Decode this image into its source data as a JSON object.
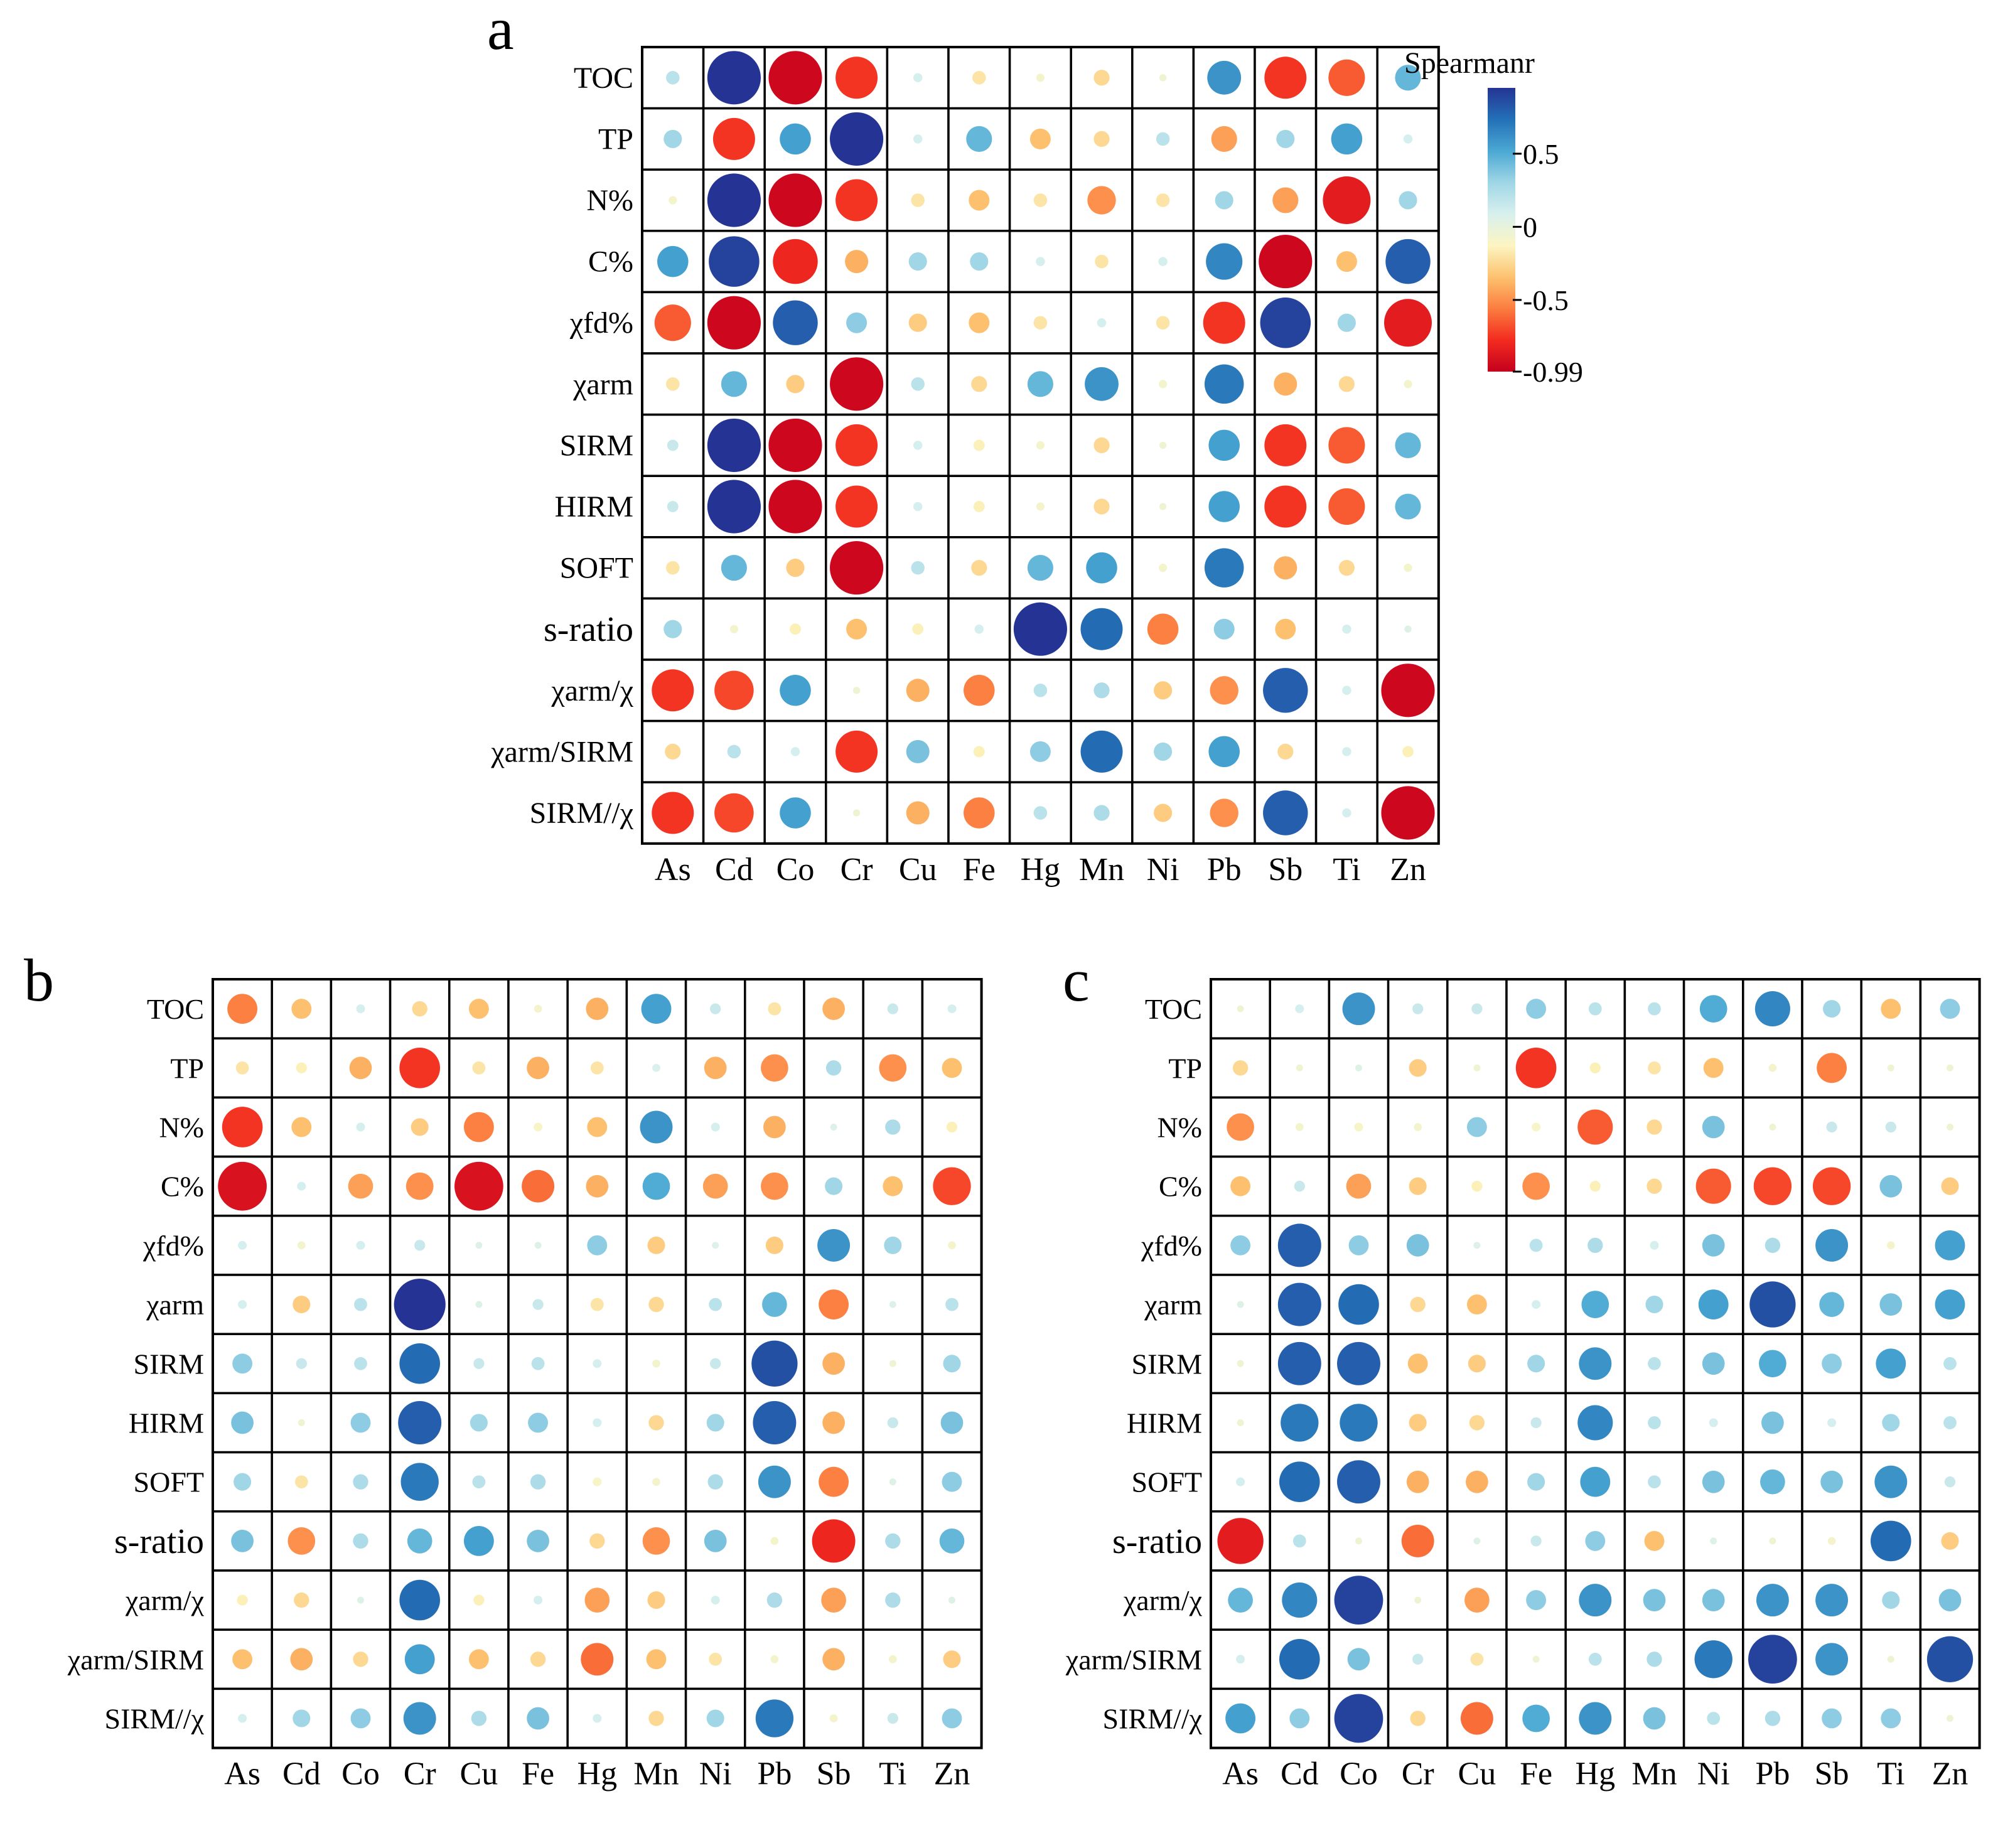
{
  "colorbar": {
    "title": "Spearmanr",
    "ticks": [
      "0.5",
      "0",
      "-0.5",
      "-0.99"
    ],
    "tick_values": [
      0.5,
      0,
      -0.5,
      -0.99
    ],
    "range": [
      -0.99,
      0.95
    ],
    "colors": [
      "#c4001e",
      "#f32b1f",
      "#fb7d3f",
      "#fdc26f",
      "#fcf5c2",
      "#d8f0ee",
      "#9fd6e6",
      "#4aa8d3",
      "#2370b7",
      "#253494"
    ]
  },
  "chart_data": [
    {
      "type": "heatmap",
      "panel_label": "a",
      "rows": [
        "TOC",
        "TP",
        "N%",
        "C%",
        "χfd%",
        "χarm",
        "SIRM",
        "HIRM",
        "SOFT",
        "s-ratio",
        "χarm/χ",
        "χarm/SIRM",
        "SIRM//χ"
      ],
      "columns": [
        "As",
        "Cd",
        "Co",
        "Cr",
        "Cu",
        "Fe",
        "Hg",
        "Mn",
        "Ni",
        "Pb",
        "Sb",
        "Ti",
        "Zn"
      ],
      "values": [
        [
          0.2,
          0.95,
          -0.95,
          -0.75,
          0.1,
          -0.2,
          -0.08,
          -0.25,
          -0.05,
          0.6,
          -0.75,
          -0.65,
          0.45
        ],
        [
          0.3,
          -0.75,
          0.55,
          0.95,
          0.1,
          0.45,
          -0.35,
          -0.25,
          0.2,
          -0.45,
          0.3,
          0.55,
          0.1
        ],
        [
          -0.08,
          0.95,
          -0.95,
          -0.75,
          -0.2,
          -0.35,
          -0.2,
          -0.5,
          -0.2,
          0.3,
          -0.45,
          -0.85,
          0.3
        ],
        [
          0.55,
          0.9,
          -0.8,
          -0.4,
          0.3,
          0.3,
          0.1,
          -0.2,
          0.1,
          0.65,
          -0.95,
          -0.35,
          0.8
        ],
        [
          -0.65,
          -0.95,
          0.8,
          0.35,
          -0.3,
          -0.35,
          -0.2,
          0.1,
          -0.2,
          -0.75,
          0.9,
          0.3,
          -0.85
        ],
        [
          -0.2,
          0.45,
          -0.3,
          -0.95,
          0.2,
          -0.25,
          0.45,
          0.6,
          -0.08,
          0.7,
          -0.4,
          -0.25,
          -0.08
        ],
        [
          0.15,
          0.95,
          -0.95,
          -0.75,
          0.1,
          -0.15,
          -0.08,
          -0.25,
          -0.05,
          0.55,
          -0.75,
          -0.65,
          0.45
        ],
        [
          0.15,
          0.95,
          -0.95,
          -0.75,
          0.1,
          -0.15,
          -0.08,
          -0.25,
          -0.05,
          0.55,
          -0.75,
          -0.65,
          0.45
        ],
        [
          -0.2,
          0.45,
          -0.3,
          -0.95,
          0.2,
          -0.25,
          0.45,
          0.55,
          -0.08,
          0.7,
          -0.4,
          -0.25,
          -0.08
        ],
        [
          0.3,
          -0.08,
          -0.15,
          -0.35,
          -0.15,
          0.1,
          0.95,
          0.75,
          -0.55,
          0.35,
          -0.35,
          0.1,
          0.05
        ],
        [
          -0.75,
          -0.7,
          0.55,
          -0.05,
          -0.4,
          -0.55,
          0.2,
          0.25,
          -0.3,
          -0.5,
          0.8,
          0.1,
          -0.95
        ],
        [
          -0.25,
          0.2,
          0.1,
          -0.75,
          0.4,
          -0.15,
          0.35,
          0.75,
          0.3,
          0.55,
          -0.25,
          0.1,
          -0.15
        ],
        [
          -0.75,
          -0.7,
          0.55,
          -0.05,
          -0.4,
          -0.55,
          0.2,
          0.25,
          -0.3,
          -0.5,
          0.8,
          0.1,
          -0.95
        ]
      ]
    },
    {
      "type": "heatmap",
      "panel_label": "b",
      "rows": [
        "TOC",
        "TP",
        "N%",
        "C%",
        "χfd%",
        "χarm",
        "SIRM",
        "HIRM",
        "SOFT",
        "s-ratio",
        "χarm/χ",
        "χarm/SIRM",
        "SIRM//χ"
      ],
      "columns": [
        "As",
        "Cd",
        "Co",
        "Cr",
        "Cu",
        "Fe",
        "Hg",
        "Mn",
        "Ni",
        "Pb",
        "Sb",
        "Ti",
        "Zn"
      ],
      "values": [
        [
          -0.55,
          -0.35,
          0.1,
          -0.25,
          -0.35,
          -0.08,
          -0.4,
          0.55,
          0.15,
          -0.2,
          -0.4,
          0.15,
          0.1
        ],
        [
          -0.2,
          -0.15,
          -0.4,
          -0.75,
          -0.2,
          -0.4,
          -0.2,
          0.08,
          -0.4,
          -0.5,
          0.25,
          -0.5,
          -0.35
        ],
        [
          -0.75,
          -0.35,
          0.1,
          -0.3,
          -0.55,
          -0.1,
          -0.35,
          0.6,
          0.1,
          -0.4,
          0.05,
          0.25,
          -0.15
        ],
        [
          -0.9,
          0.1,
          -0.45,
          -0.5,
          -0.9,
          -0.6,
          -0.4,
          0.5,
          -0.45,
          -0.5,
          0.3,
          -0.35,
          -0.7
        ],
        [
          0.1,
          -0.08,
          0.1,
          0.15,
          0.05,
          0.05,
          0.35,
          -0.3,
          0.05,
          -0.3,
          0.6,
          0.3,
          -0.08
        ],
        [
          0.1,
          -0.3,
          0.2,
          0.95,
          0.05,
          0.15,
          -0.2,
          -0.25,
          0.2,
          0.45,
          -0.55,
          0.05,
          0.2
        ],
        [
          0.35,
          0.15,
          0.2,
          0.75,
          0.15,
          0.2,
          0.1,
          -0.08,
          0.15,
          0.85,
          -0.4,
          -0.05,
          0.3
        ],
        [
          0.4,
          -0.05,
          0.35,
          0.8,
          0.3,
          0.35,
          0.1,
          -0.25,
          0.3,
          0.8,
          -0.4,
          0.15,
          0.4
        ],
        [
          0.3,
          -0.2,
          0.25,
          0.7,
          0.2,
          0.25,
          -0.1,
          -0.08,
          0.25,
          0.6,
          -0.55,
          0.05,
          0.35
        ],
        [
          0.4,
          -0.5,
          0.25,
          0.45,
          0.55,
          0.4,
          -0.25,
          -0.5,
          0.4,
          -0.08,
          -0.8,
          0.25,
          0.45
        ],
        [
          -0.15,
          -0.25,
          0.05,
          0.75,
          -0.15,
          0.1,
          -0.45,
          -0.3,
          0.1,
          0.25,
          -0.45,
          0.25,
          0.05
        ],
        [
          -0.35,
          -0.4,
          -0.25,
          0.55,
          -0.35,
          -0.25,
          -0.6,
          -0.35,
          -0.2,
          -0.08,
          -0.4,
          -0.08,
          -0.3
        ],
        [
          0.1,
          0.3,
          0.35,
          0.6,
          0.25,
          0.4,
          0.1,
          -0.25,
          0.3,
          0.7,
          -0.08,
          0.15,
          0.35
        ]
      ]
    },
    {
      "type": "heatmap",
      "panel_label": "c",
      "rows": [
        "TOC",
        "TP",
        "N%",
        "C%",
        "χfd%",
        "χarm",
        "SIRM",
        "HIRM",
        "SOFT",
        "s-ratio",
        "χarm/χ",
        "χarm/SIRM",
        "SIRM//χ"
      ],
      "columns": [
        "As",
        "Cd",
        "Co",
        "Cr",
        "Cu",
        "Fe",
        "Hg",
        "Mn",
        "Ni",
        "Pb",
        "Sb",
        "Ti",
        "Zn"
      ],
      "values": [
        [
          -0.05,
          0.1,
          0.6,
          0.15,
          0.15,
          0.35,
          0.2,
          0.2,
          0.5,
          0.65,
          0.3,
          -0.35,
          0.35
        ],
        [
          -0.25,
          -0.05,
          0.05,
          -0.3,
          -0.05,
          -0.75,
          -0.15,
          -0.2,
          -0.35,
          -0.08,
          -0.55,
          -0.05,
          -0.05
        ],
        [
          -0.5,
          -0.08,
          -0.1,
          -0.08,
          0.35,
          -0.1,
          -0.65,
          -0.25,
          0.4,
          -0.05,
          0.15,
          0.15,
          -0.05
        ],
        [
          -0.35,
          0.15,
          -0.45,
          -0.3,
          -0.15,
          -0.5,
          -0.15,
          -0.25,
          -0.65,
          -0.7,
          -0.7,
          0.4,
          -0.3
        ],
        [
          0.35,
          0.8,
          0.35,
          0.4,
          0.05,
          0.2,
          0.25,
          0.1,
          0.4,
          0.25,
          0.6,
          -0.08,
          0.55
        ],
        [
          0.05,
          0.8,
          0.75,
          -0.25,
          -0.35,
          0.1,
          0.5,
          0.3,
          0.55,
          0.85,
          0.45,
          0.4,
          0.55
        ],
        [
          -0.05,
          0.8,
          0.8,
          -0.35,
          -0.3,
          0.3,
          0.6,
          0.2,
          0.4,
          0.5,
          0.35,
          0.55,
          0.2
        ],
        [
          -0.05,
          0.7,
          0.7,
          -0.3,
          -0.25,
          0.15,
          0.65,
          0.2,
          0.1,
          0.4,
          0.1,
          0.3,
          0.2
        ],
        [
          0.1,
          0.75,
          0.8,
          -0.4,
          -0.4,
          0.3,
          0.55,
          0.2,
          0.4,
          0.45,
          0.4,
          0.6,
          0.15
        ],
        [
          -0.85,
          0.2,
          -0.05,
          -0.6,
          0.05,
          0.15,
          0.35,
          -0.35,
          0.05,
          -0.05,
          -0.08,
          0.75,
          -0.3
        ],
        [
          0.45,
          0.65,
          0.9,
          -0.05,
          -0.45,
          0.35,
          0.6,
          0.4,
          0.4,
          0.6,
          0.6,
          0.3,
          0.4
        ],
        [
          0.1,
          0.75,
          0.4,
          0.15,
          -0.2,
          -0.05,
          0.2,
          0.25,
          0.7,
          0.9,
          0.6,
          -0.05,
          0.85
        ],
        [
          0.55,
          0.35,
          0.9,
          -0.25,
          -0.6,
          0.5,
          0.6,
          0.4,
          0.2,
          0.25,
          0.35,
          0.35,
          -0.05
        ]
      ]
    }
  ]
}
